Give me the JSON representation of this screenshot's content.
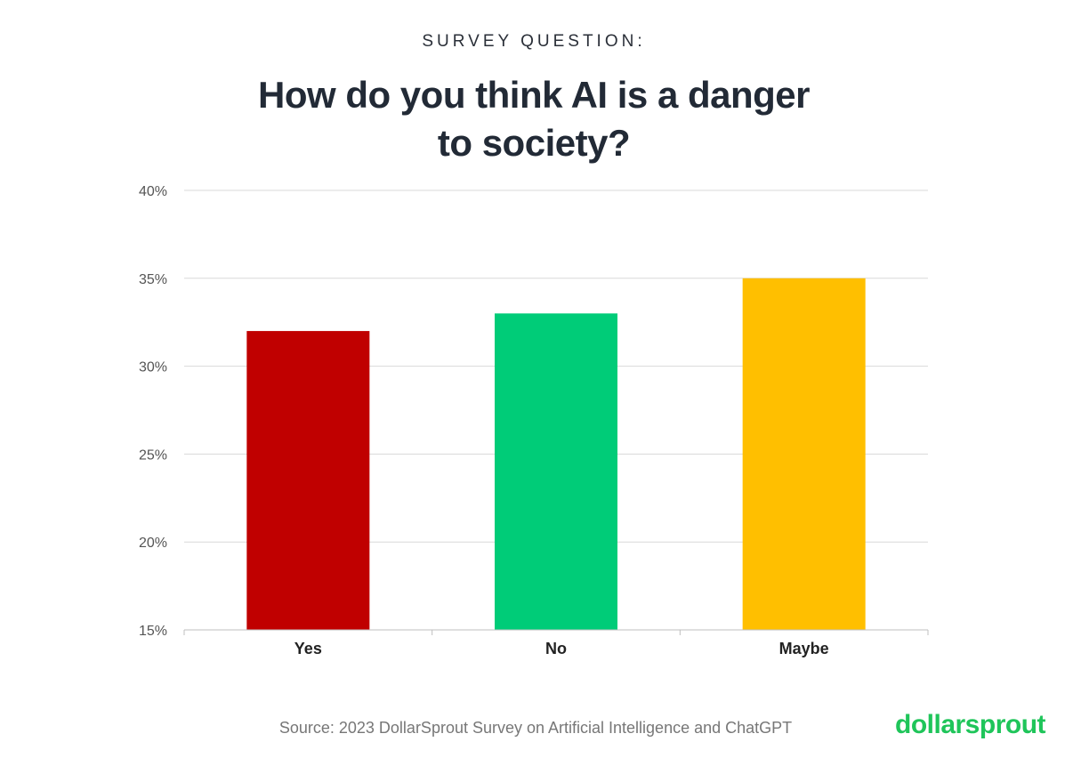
{
  "eyebrow": "SURVEY QUESTION:",
  "source": "Source: 2023 DollarSprout Survey on Artificial Intelligence and ChatGPT",
  "logo": "dollarsprout",
  "chart_data": {
    "type": "bar",
    "title": "How do you think AI is a danger to society?",
    "title_lines": [
      "How do you think AI is a danger",
      "to society?"
    ],
    "categories": [
      "Yes",
      "No",
      "Maybe"
    ],
    "values": [
      32,
      33,
      35
    ],
    "colors": [
      "#c00000",
      "#00cc78",
      "#ffbf00"
    ],
    "ylim": [
      15,
      40
    ],
    "yticks": [
      15,
      20,
      25,
      30,
      35,
      40
    ],
    "ytick_labels": [
      "15%",
      "20%",
      "25%",
      "30%",
      "35%",
      "40%"
    ],
    "grid": true,
    "xlabel": "",
    "ylabel": ""
  }
}
